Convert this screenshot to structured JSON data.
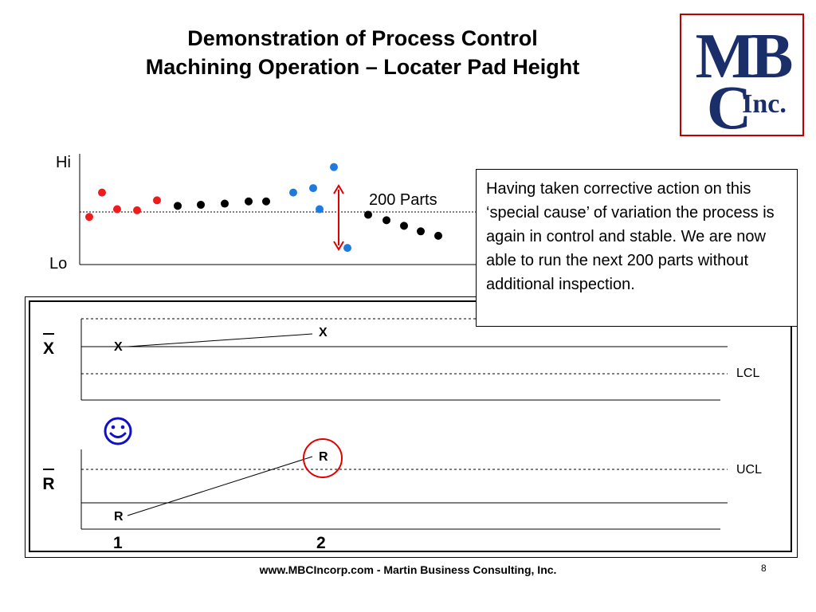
{
  "slide": {
    "title_line1": "Demonstration of Process Control",
    "title_line2": "Machining Operation – Locater Pad Height",
    "logo_text_top": "MB",
    "logo_text_c": "C",
    "logo_text_inc": "Inc.",
    "footer": "www.MBCIncorp.com  -  Martin Business Consulting, Inc.",
    "page_number": "8"
  },
  "run_chart": {
    "y_hi_label": "Hi",
    "y_lo_label": "Lo",
    "annotation": "200 Parts",
    "colors": {
      "red": "#ee1c1c",
      "black": "#000000",
      "blue": "#1f7ae0",
      "arrow": "#e00000"
    },
    "points": [
      {
        "color": "red",
        "level": 0.43
      },
      {
        "color": "red",
        "level": 0.65
      },
      {
        "color": "red",
        "level": 0.5
      },
      {
        "color": "red",
        "level": 0.49
      },
      {
        "color": "red",
        "level": 0.58
      },
      {
        "color": "black",
        "level": 0.53
      },
      {
        "color": "black",
        "level": 0.54
      },
      {
        "color": "black",
        "level": 0.55
      },
      {
        "color": "black",
        "level": 0.57
      },
      {
        "color": "black",
        "level": 0.57
      },
      {
        "color": "blue",
        "level": 0.65
      },
      {
        "color": "blue",
        "level": 0.69
      },
      {
        "color": "blue",
        "level": 0.5
      },
      {
        "color": "blue",
        "level": 0.88
      },
      {
        "color": "blue",
        "level": 0.15
      },
      {
        "color": "black",
        "level": 0.45
      },
      {
        "color": "black",
        "level": 0.4
      },
      {
        "color": "black",
        "level": 0.35
      },
      {
        "color": "black",
        "level": 0.3
      },
      {
        "color": "black",
        "level": 0.26
      }
    ]
  },
  "callout": {
    "text": "Having taken corrective action on this ‘special cause’ of variation the process is again in control and stable.  We are now able to run the next 200 parts without additional inspection."
  },
  "control_charts": {
    "xbar_label": "X",
    "r_label": "R",
    "lcl_label": "LCL",
    "ucl_label": "UCL",
    "point_label_x": "X",
    "point_label_r": "R",
    "subgroup_1": "1",
    "subgroup_2": "2",
    "smiley_color": "#1010c8",
    "circle_color": "#e00000"
  }
}
